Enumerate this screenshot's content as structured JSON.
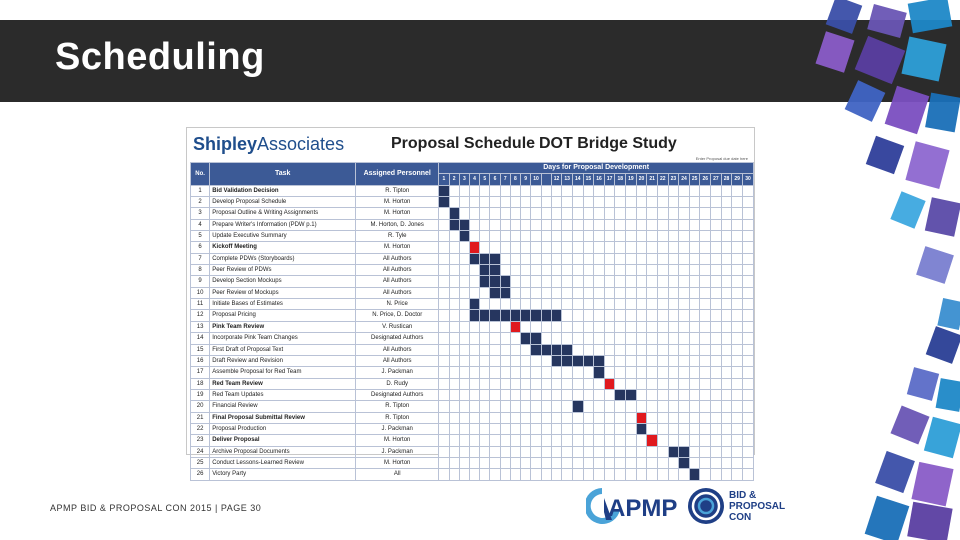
{
  "slide": {
    "title": "Scheduling",
    "footer": "APMP BID & PROPOSAL CON 2015 | PAGE 30"
  },
  "schedule": {
    "logo_a": "Shipley",
    "logo_b": "Associates",
    "title": "Proposal Schedule",
    "subtitle": "DOT Bridge Study",
    "note": "Enter Proposal due date here",
    "col_no": "No.",
    "col_task": "Task",
    "col_personnel": "Assigned Personnel",
    "days_header": "Days for Proposal Development",
    "day_labels": [
      "1",
      "2",
      "3",
      "4",
      "5",
      "6",
      "7",
      "8",
      "9",
      "10",
      "",
      "12",
      "13",
      "14",
      "15",
      "16",
      "17",
      "18",
      "19",
      "20",
      "21",
      "22",
      "23",
      "24",
      "25",
      "26",
      "27",
      "28",
      "29",
      "30"
    ],
    "rows": [
      {
        "no": "1",
        "task": "Bid Validation Decision",
        "person": "R. Tipton",
        "bold": true,
        "bars": [
          1
        ],
        "color": "navy"
      },
      {
        "no": "2",
        "task": "Develop Proposal Schedule",
        "person": "M. Horton",
        "bold": false,
        "bars": [
          1
        ],
        "color": "navy"
      },
      {
        "no": "3",
        "task": "Proposal Outline & Writing Assignments",
        "person": "M. Horton",
        "bold": false,
        "bars": [
          2
        ],
        "color": "navy"
      },
      {
        "no": "4",
        "task": "Prepare Writer's Information (PDW p.1)",
        "person": "M. Horton, D. Jones",
        "bold": false,
        "bars": [
          2,
          3
        ],
        "color": "navy"
      },
      {
        "no": "5",
        "task": "Update Executive Summary",
        "person": "R. Tyle",
        "bold": false,
        "bars": [
          3
        ],
        "color": "navy"
      },
      {
        "no": "6",
        "task": "Kickoff Meeting",
        "person": "M. Horton",
        "bold": true,
        "bars": [
          4
        ],
        "color": "red"
      },
      {
        "no": "7",
        "task": "Complete PDWs (Storyboards)",
        "person": "All Authors",
        "bold": false,
        "bars": [
          4,
          5,
          6
        ],
        "color": "navy"
      },
      {
        "no": "8",
        "task": "Peer Review of PDWs",
        "person": "All Authors",
        "bold": false,
        "bars": [
          5,
          6
        ],
        "color": "navy"
      },
      {
        "no": "9",
        "task": "Develop Section Mockups",
        "person": "All Authors",
        "bold": false,
        "bars": [
          5,
          6,
          7
        ],
        "color": "navy"
      },
      {
        "no": "10",
        "task": "Peer Review of Mockups",
        "person": "All Authors",
        "bold": false,
        "bars": [
          6,
          7
        ],
        "color": "navy"
      },
      {
        "no": "11",
        "task": "Initiate Bases of Estimates",
        "person": "N. Price",
        "bold": false,
        "bars": [
          4
        ],
        "color": "navy"
      },
      {
        "no": "12",
        "task": "Proposal Pricing",
        "person": "N. Price, D. Doctor",
        "bold": false,
        "bars": [
          4,
          5,
          6,
          7,
          8,
          9,
          10,
          11,
          12
        ],
        "color": "navy"
      },
      {
        "no": "13",
        "task": "Pink Team Review",
        "person": "V. Rustican",
        "bold": true,
        "bars": [
          8
        ],
        "color": "red"
      },
      {
        "no": "14",
        "task": "Incorporate Pink Team Changes",
        "person": "Designated Authors",
        "bold": false,
        "bars": [
          9,
          10
        ],
        "color": "navy"
      },
      {
        "no": "15",
        "task": "First Draft of Proposal Text",
        "person": "All Authors",
        "bold": false,
        "bars": [
          10,
          11,
          12,
          13
        ],
        "color": "navy"
      },
      {
        "no": "16",
        "task": "Draft Review and Revision",
        "person": "All Authors",
        "bold": false,
        "bars": [
          12,
          13,
          14,
          15,
          16
        ],
        "color": "navy"
      },
      {
        "no": "17",
        "task": "Assemble Proposal for Red Team",
        "person": "J. Packman",
        "bold": false,
        "bars": [
          16
        ],
        "color": "navy"
      },
      {
        "no": "18",
        "task": "Red Team Review",
        "person": "D. Rudy",
        "bold": true,
        "bars": [
          17
        ],
        "color": "red"
      },
      {
        "no": "19",
        "task": "Red Team Updates",
        "person": "Designated Authors",
        "bold": false,
        "bars": [
          18,
          19
        ],
        "color": "navy"
      },
      {
        "no": "20",
        "task": "Financial Review",
        "person": "R. Tipton",
        "bold": false,
        "bars": [
          14
        ],
        "color": "navy"
      },
      {
        "no": "21",
        "task": "Final Proposal Submittal Review",
        "person": "R. Tipton",
        "bold": true,
        "bars": [
          20
        ],
        "color": "red"
      },
      {
        "no": "22",
        "task": "Proposal Production",
        "person": "J. Packman",
        "bold": false,
        "bars": [
          20
        ],
        "color": "navy"
      },
      {
        "no": "23",
        "task": "Deliver Proposal",
        "person": "M. Horton",
        "bold": true,
        "bars": [
          21
        ],
        "color": "red"
      },
      {
        "no": "24",
        "task": "Archive Proposal Documents",
        "person": "J. Packman",
        "bold": false,
        "bars": [
          23,
          24
        ],
        "color": "navy"
      },
      {
        "no": "25",
        "task": "Conduct Lessons-Learned Review",
        "person": "M. Horton",
        "bold": false,
        "bars": [
          24
        ],
        "color": "navy"
      },
      {
        "no": "26",
        "task": "Victory Party",
        "person": "All",
        "bold": false,
        "bars": [
          25
        ],
        "color": "navy"
      }
    ],
    "colors": {
      "navy": "#26365f",
      "red": "#e0191e",
      "header": "#3c5a96"
    }
  },
  "logos": {
    "apmp": "APMP",
    "con_line1": "BID &",
    "con_line2": "PROPOSAL",
    "con_line3": "CON"
  }
}
